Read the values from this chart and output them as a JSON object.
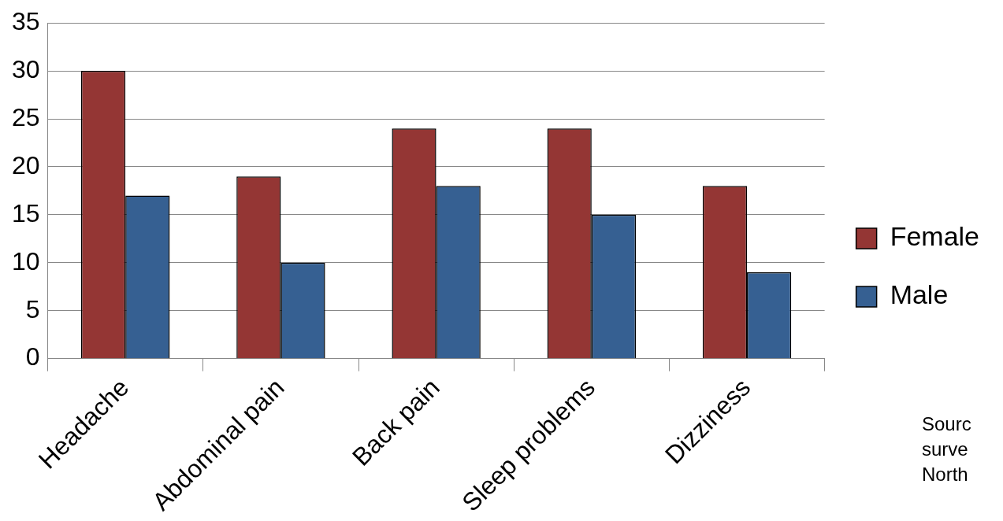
{
  "chart_data": {
    "type": "bar",
    "categories": [
      "Headache",
      "Abdominal pain",
      "Back pain",
      "Sleep problems",
      "Dizziness"
    ],
    "series": [
      {
        "name": "Female",
        "color": "#943634",
        "values": [
          30,
          19,
          24,
          24,
          18
        ]
      },
      {
        "name": "Male",
        "color": "#366092",
        "values": [
          17,
          10,
          18,
          15,
          9
        ]
      }
    ],
    "ylim": [
      0,
      35
    ],
    "yticks": [
      0,
      5,
      10,
      15,
      20,
      25,
      30,
      35
    ],
    "grid": "y",
    "legend": "right",
    "annotations": [
      "Sourc",
      "surve",
      "North"
    ]
  }
}
